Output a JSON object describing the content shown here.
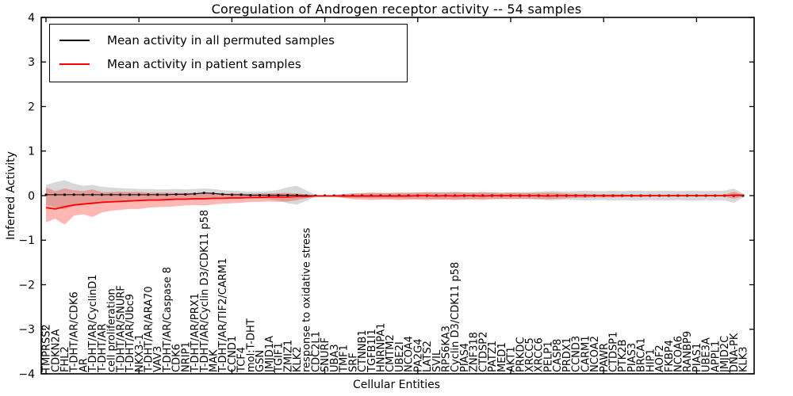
{
  "figure": {
    "title": "Coregulation of Androgen receptor activity -- 54 samples",
    "xlabel": "Cellular Entities",
    "ylabel": "Inferred Activity",
    "legend": {
      "permuted_label": "Mean activity in all permuted samples",
      "patient_label": "Mean activity in patient samples"
    }
  },
  "chart_data": {
    "type": "line",
    "title": "Coregulation of Androgen receptor activity -- 54 samples",
    "xlabel": "Cellular Entities",
    "ylabel": "Inferred Activity",
    "ylim": [
      -4,
      4
    ],
    "y_ticks": [
      "4",
      "3",
      "2",
      "1",
      "0",
      "−1",
      "−2",
      "−3",
      "−4"
    ],
    "y_tick_values": [
      4,
      3,
      2,
      1,
      0,
      -1,
      -2,
      -3,
      -4
    ],
    "x_major_tick_every": 10,
    "grid": false,
    "legend_position": "upper left",
    "colors": {
      "permuted_line": "#000000",
      "patient_line": "#ff0000",
      "permuted_band": "rgba(125,125,125,0.30)",
      "patient_band": "rgba(255,30,20,0.32)",
      "frame": "#000000"
    },
    "categories": [
      "TMPRSS2",
      "CDKN2A",
      "FHL2",
      "T-DHT/AR/CDK6",
      "AR",
      "T-DHT/AR/CyclinD1",
      "T-DHT/AR",
      "cell proliferation",
      "T-DHT/AR/SNURF",
      "T-DHT/AR/Ubc9",
      "NKX3-1",
      "T-DHT/AR/ARA70",
      "VAV3",
      "T-DHT/AR/Caspase 8",
      "CDK6",
      "NRIP1",
      "T-DHT/AR/PRX1",
      "T-DHT/AR/Cyclin D3/CDK11 p58",
      "MAK",
      "T-DHT/AR/TIF2/CARM1",
      "CCND1",
      "TCF4",
      "mol:T-DHT",
      "GSN",
      "JMJD1A",
      "TGIF1",
      "ZMIZ1",
      "KLK2",
      "response to oxidative stress",
      "CDC2L1",
      "SNURF",
      "UBA3",
      "TMF1",
      "SRF",
      "CTNNB1",
      "TGFB1I1",
      "HNRNPA1",
      "CMTM2",
      "UBE2I",
      "NCOA4",
      "PA2G4",
      "LATS2",
      "SVIL",
      "RPS6KA3",
      "Cyclin D3/CDK11 p58",
      "PIAS4",
      "ZNF318",
      "CTDSP2",
      "PATZ1",
      "MED1",
      "AKT1",
      "PRKDC",
      "XRCC5",
      "XRCC6",
      "PELP1",
      "CASP8",
      "PRDX1",
      "CCND3",
      "CARM1",
      "NCOA2",
      "PAWR",
      "CTDSP1",
      "PTK2B",
      "PIAS3",
      "BRCA1",
      "HIP1",
      "AOF2",
      "FKBP4",
      "NCOA6",
      "RANBP9",
      "PIAS1",
      "UBE3A",
      "APPL1",
      "JMJD2C",
      "DNA-PK",
      "KLK3"
    ],
    "series": [
      {
        "name": "Mean activity in all permuted samples",
        "color": "#000000",
        "marker": "square",
        "values": [
          0.02,
          0.02,
          0.02,
          0.02,
          0.02,
          0.02,
          0.02,
          0.02,
          0.02,
          0.02,
          0.02,
          0.02,
          0.02,
          0.02,
          0.03,
          0.03,
          0.04,
          0.06,
          0.05,
          0.03,
          0.02,
          0.02,
          0.01,
          0.01,
          0.01,
          0.01,
          0.01,
          0.01,
          0.0,
          0.0,
          0.0,
          0.0,
          0.0,
          0.0,
          0.0,
          0.0,
          0.0,
          0.0,
          0.0,
          0.0,
          0.0,
          0.0,
          0.0,
          0.0,
          0.0,
          0.0,
          0.0,
          0.0,
          0.0,
          0.0,
          0.0,
          0.0,
          0.0,
          0.0,
          0.0,
          0.0,
          0.0,
          0.0,
          0.0,
          0.0,
          0.0,
          0.0,
          0.0,
          0.0,
          0.0,
          0.0,
          0.0,
          0.0,
          0.0,
          0.0,
          0.0,
          0.0,
          0.0,
          0.0,
          0.0,
          0.0
        ],
        "band_upper": [
          0.24,
          0.3,
          0.35,
          0.27,
          0.22,
          0.24,
          0.2,
          0.18,
          0.17,
          0.16,
          0.15,
          0.15,
          0.14,
          0.14,
          0.15,
          0.14,
          0.15,
          0.16,
          0.15,
          0.12,
          0.11,
          0.1,
          0.09,
          0.09,
          0.1,
          0.13,
          0.19,
          0.22,
          0.12,
          0.02,
          0.01,
          0.02,
          0.04,
          0.05,
          0.05,
          0.06,
          0.06,
          0.06,
          0.06,
          0.07,
          0.07,
          0.07,
          0.08,
          0.08,
          0.08,
          0.08,
          0.07,
          0.07,
          0.07,
          0.07,
          0.07,
          0.08,
          0.08,
          0.09,
          0.1,
          0.1,
          0.09,
          0.1,
          0.11,
          0.1,
          0.1,
          0.11,
          0.1,
          0.11,
          0.11,
          0.1,
          0.11,
          0.11,
          0.1,
          0.11,
          0.11,
          0.1,
          0.11,
          0.11,
          0.16,
          0.05
        ],
        "band_lower": [
          -0.2,
          -0.26,
          -0.31,
          -0.23,
          -0.18,
          -0.2,
          -0.16,
          -0.14,
          -0.13,
          -0.12,
          -0.11,
          -0.11,
          -0.1,
          -0.1,
          -0.09,
          -0.08,
          -0.07,
          -0.04,
          -0.05,
          -0.06,
          -0.07,
          -0.06,
          -0.07,
          -0.07,
          -0.08,
          -0.11,
          -0.17,
          -0.2,
          -0.12,
          -0.02,
          -0.01,
          -0.02,
          -0.04,
          -0.05,
          -0.05,
          -0.06,
          -0.06,
          -0.06,
          -0.06,
          -0.07,
          -0.07,
          -0.07,
          -0.08,
          -0.08,
          -0.08,
          -0.08,
          -0.07,
          -0.07,
          -0.07,
          -0.07,
          -0.07,
          -0.08,
          -0.08,
          -0.09,
          -0.1,
          -0.1,
          -0.09,
          -0.1,
          -0.11,
          -0.1,
          -0.1,
          -0.11,
          -0.1,
          -0.11,
          -0.11,
          -0.1,
          -0.11,
          -0.11,
          -0.1,
          -0.11,
          -0.11,
          -0.1,
          -0.11,
          -0.11,
          -0.16,
          -0.05
        ]
      },
      {
        "name": "Mean activity in patient samples",
        "color": "#ff0000",
        "marker": "none",
        "values": [
          -0.27,
          -0.3,
          -0.25,
          -0.21,
          -0.19,
          -0.17,
          -0.15,
          -0.14,
          -0.13,
          -0.12,
          -0.11,
          -0.1,
          -0.1,
          -0.09,
          -0.08,
          -0.08,
          -0.07,
          -0.07,
          -0.06,
          -0.06,
          -0.05,
          -0.05,
          -0.04,
          -0.04,
          -0.03,
          -0.03,
          -0.03,
          -0.02,
          -0.02,
          -0.01,
          -0.01,
          -0.01,
          -0.01,
          -0.01,
          -0.01,
          -0.01,
          -0.01,
          -0.01,
          -0.01,
          -0.01,
          0.0,
          0.0,
          -0.01,
          0.0,
          -0.01,
          0.0,
          0.0,
          -0.01,
          0.0,
          0.0,
          0.0,
          0.0,
          0.0,
          0.0,
          -0.01,
          0.0,
          0.0,
          0.0,
          0.0,
          0.0,
          0.0,
          0.0,
          0.0,
          0.0,
          0.0,
          0.0,
          0.0,
          0.0,
          0.0,
          0.0,
          0.0,
          0.0,
          0.0,
          0.0,
          0.01,
          0.01
        ],
        "band_upper": [
          0.18,
          0.1,
          0.16,
          0.12,
          0.1,
          0.14,
          0.08,
          0.08,
          0.09,
          0.08,
          0.08,
          0.07,
          0.07,
          0.07,
          0.06,
          0.06,
          0.06,
          0.07,
          0.06,
          0.05,
          0.05,
          0.05,
          0.04,
          0.05,
          0.05,
          0.06,
          0.06,
          0.05,
          0.03,
          0.01,
          0.0,
          0.01,
          0.03,
          0.05,
          0.06,
          0.07,
          0.06,
          0.06,
          0.07,
          0.06,
          0.07,
          0.08,
          0.07,
          0.07,
          0.08,
          0.07,
          0.07,
          0.08,
          0.07,
          0.06,
          0.07,
          0.06,
          0.06,
          0.06,
          0.07,
          0.06,
          0.05,
          0.04,
          0.04,
          0.03,
          0.03,
          0.03,
          0.03,
          0.02,
          0.02,
          0.02,
          0.02,
          0.02,
          0.02,
          0.02,
          0.02,
          0.02,
          0.02,
          0.02,
          0.09,
          0.02
        ],
        "band_lower": [
          -0.6,
          -0.52,
          -0.65,
          -0.45,
          -0.42,
          -0.48,
          -0.38,
          -0.34,
          -0.32,
          -0.3,
          -0.3,
          -0.27,
          -0.26,
          -0.25,
          -0.24,
          -0.22,
          -0.21,
          -0.22,
          -0.2,
          -0.18,
          -0.17,
          -0.16,
          -0.14,
          -0.14,
          -0.13,
          -0.14,
          -0.13,
          -0.1,
          -0.06,
          -0.02,
          -0.01,
          -0.02,
          -0.05,
          -0.08,
          -0.09,
          -0.1,
          -0.09,
          -0.09,
          -0.1,
          -0.09,
          -0.09,
          -0.1,
          -0.09,
          -0.09,
          -0.1,
          -0.09,
          -0.09,
          -0.1,
          -0.08,
          -0.08,
          -0.08,
          -0.07,
          -0.07,
          -0.07,
          -0.08,
          -0.07,
          -0.06,
          -0.05,
          -0.05,
          -0.04,
          -0.04,
          -0.04,
          -0.03,
          -0.03,
          -0.03,
          -0.02,
          -0.02,
          -0.02,
          -0.02,
          -0.02,
          -0.02,
          -0.02,
          -0.02,
          -0.02,
          -0.07,
          -0.02
        ]
      }
    ]
  }
}
